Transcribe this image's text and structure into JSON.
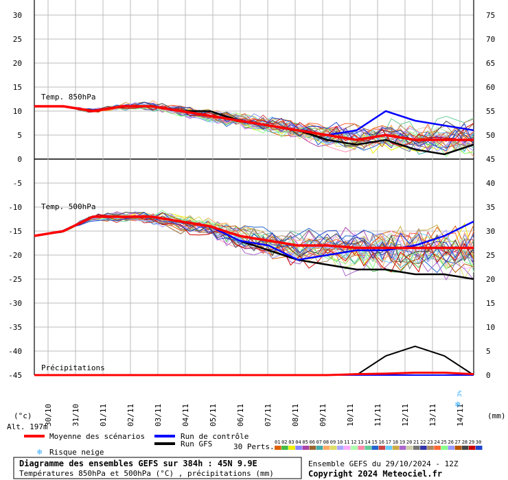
{
  "chart_data": {
    "type": "line",
    "title": "Diagramme des ensembles GEFS sur 384h : 45N 9.9E",
    "subtitle": "Températures 850hPa et 500hPa (°C) , précipitations (mm)",
    "run_info": "Ensemble GEFS du 29/10/2024 - 12Z",
    "copyright": "Copyright 2024 Meteociel.fr",
    "altitude": "Alt. 197m",
    "left_unit": "(°c)",
    "right_unit": "(mm)",
    "left_ticks": [
      "30",
      "25",
      "20",
      "15",
      "10",
      "5",
      "0",
      "-5",
      "-10",
      "-15",
      "-20",
      "-25",
      "-30",
      "-35",
      "-40",
      "-45"
    ],
    "right_ticks": [
      "75",
      "70",
      "65",
      "60",
      "55",
      "50",
      "45",
      "40",
      "35",
      "30",
      "25",
      "20",
      "15",
      "10",
      "5",
      "0"
    ],
    "dates": [
      "30/10",
      "31/10",
      "01/11",
      "02/11",
      "03/11",
      "04/11",
      "05/11",
      "06/11",
      "07/11",
      "08/11",
      "09/11",
      "10/11",
      "11/11",
      "12/11",
      "13/11",
      "14/11"
    ],
    "ylim_temp": [
      -45,
      30
    ],
    "ylim_precip": [
      0,
      75
    ],
    "section_labels": {
      "t850": "Temp. 850hPa",
      "t500": "Temp. 500hPa",
      "precip": "Précipitations"
    },
    "snow_risk_label": "3%",
    "legend": {
      "mean": "Moyenne des scénarios",
      "control": "Run de contrôle",
      "gfs": "Run GFS",
      "snow": "Risque neige",
      "perts": "30 Perts."
    },
    "members": [
      "01",
      "02",
      "03",
      "04",
      "05",
      "06",
      "07",
      "08",
      "09",
      "10",
      "11",
      "12",
      "13",
      "14",
      "15",
      "16",
      "17",
      "18",
      "19",
      "20",
      "21",
      "22",
      "23",
      "24",
      "25",
      "26",
      "27",
      "28",
      "29",
      "30"
    ],
    "member_colors": [
      "#e06000",
      "#44bb44",
      "#eeee00",
      "#8888ff",
      "#aa44aa",
      "#996633",
      "#44aaaa",
      "#ffaa66",
      "#dddd66",
      "#aaaaff",
      "#ffaaff",
      "#aaffaa",
      "#ff88aa",
      "#66cc99",
      "#2266cc",
      "#cc4444",
      "#66ccff",
      "#ccaa44",
      "#aa66cc",
      "#ccccaa",
      "#777777",
      "#3333aa",
      "#aa8866",
      "#ff6633",
      "#88ff88",
      "#9999ff",
      "#bb5500",
      "#444444",
      "#cc0000",
      "#2244cc"
    ],
    "series_t850": {
      "mean": [
        11,
        11,
        10,
        11,
        11,
        10,
        9,
        8,
        7,
        6,
        5,
        4,
        5,
        4,
        4,
        4
      ],
      "control": [
        11,
        11,
        10,
        11,
        11,
        10,
        9,
        8,
        7,
        6,
        5,
        6,
        10,
        8,
        7,
        6
      ],
      "gfs": [
        11,
        11,
        10,
        11,
        11,
        10,
        10,
        8,
        7,
        6,
        4,
        3,
        4,
        2,
        1,
        3
      ]
    },
    "series_t500": {
      "mean": [
        -16,
        -15,
        -12,
        -12,
        -12,
        -13,
        -14,
        -16,
        -17,
        -18,
        -18,
        -18.5,
        -18.5,
        -18.5,
        -18.5,
        -18.5
      ],
      "control": [
        -16,
        -15,
        -12,
        -12,
        -12,
        -13,
        -14,
        -17,
        -18,
        -21,
        -20,
        -19,
        -19,
        -18,
        -16,
        -13
      ],
      "gfs": [
        -16,
        -15,
        -12,
        -12,
        -12,
        -13,
        -14,
        -17,
        -19,
        -21,
        -22,
        -23,
        -23,
        -24,
        -24,
        -25
      ]
    },
    "series_precip": {
      "mean": [
        0,
        0,
        0,
        0,
        0,
        0,
        0,
        0,
        0,
        0,
        0,
        0.2,
        0.3,
        0.5,
        0.5,
        0.2
      ],
      "control": [
        0,
        0,
        0,
        0,
        0,
        0,
        0,
        0,
        0,
        0,
        0,
        0,
        0,
        0,
        0,
        0
      ],
      "gfs": [
        0,
        0,
        0,
        0,
        0,
        0,
        0,
        0,
        0,
        0,
        0,
        0,
        4,
        6,
        4,
        0
      ]
    }
  }
}
